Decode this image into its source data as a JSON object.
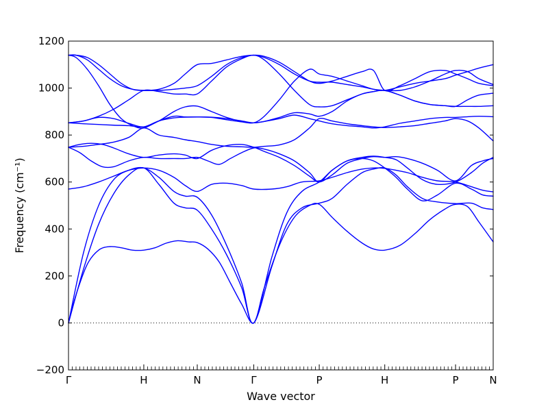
{
  "chart_data": {
    "type": "line",
    "xlabel": "Wave vector",
    "ylabel": "Frequency (cm⁻¹)",
    "ylim": [
      -200,
      1200
    ],
    "yticks": [
      -200,
      0,
      200,
      400,
      600,
      800,
      1000,
      1200
    ],
    "ytick_labels": [
      "−200",
      "0",
      "200",
      "400",
      "600",
      "800",
      "1000",
      "1200"
    ],
    "xlim": [
      0,
      5.64
    ],
    "xticks": [
      {
        "position": 0,
        "label": "Γ"
      },
      {
        "position": 1,
        "label": "H"
      },
      {
        "position": 1.71,
        "label": "N"
      },
      {
        "position": 2.46,
        "label": "Γ"
      },
      {
        "position": 3.33,
        "label": "P"
      },
      {
        "position": 4.2,
        "label": "H"
      },
      {
        "position": 5.14,
        "label": "P"
      },
      {
        "position": 5.64,
        "label": "N"
      }
    ],
    "zero_line": true,
    "series_color": "#0000ff",
    "series": [
      {
        "x": [
          0,
          0.1,
          0.25,
          0.4,
          0.55,
          0.7,
          0.85,
          1,
          1.15,
          1.3,
          1.45,
          1.6,
          1.71,
          1.85,
          2.0,
          2.15,
          2.3,
          2.46,
          2.6,
          2.8,
          3.0,
          3.2,
          3.33,
          3.5,
          3.7,
          3.9,
          4.05,
          4.2,
          4.4,
          4.6,
          4.8,
          5.0,
          5.14,
          5.3,
          5.45,
          5.64
        ],
        "y": [
          0,
          120,
          250,
          310,
          325,
          320,
          310,
          310,
          320,
          340,
          350,
          345,
          342,
          315,
          260,
          170,
          80,
          0,
          150,
          330,
          450,
          500,
          505,
          450,
          390,
          340,
          315,
          310,
          330,
          380,
          440,
          485,
          505,
          495,
          430,
          345
        ]
      },
      {
        "x": [
          0,
          0.2,
          0.4,
          0.6,
          0.8,
          1,
          1.2,
          1.4,
          1.55,
          1.71,
          1.9,
          2.1,
          2.3,
          2.46,
          2.7,
          2.9,
          3.1,
          3.33,
          3.5,
          3.7,
          3.9,
          4.05,
          4.2,
          4.35,
          4.5,
          4.7,
          4.9,
          5.14,
          5.35,
          5.5,
          5.64
        ],
        "y": [
          0,
          230,
          420,
          550,
          630,
          660,
          590,
          510,
          490,
          480,
          400,
          290,
          150,
          0,
          240,
          420,
          490,
          510,
          530,
          590,
          640,
          655,
          660,
          630,
          580,
          530,
          515,
          508,
          510,
          490,
          483
        ]
      },
      {
        "x": [
          0,
          0.2,
          0.4,
          0.6,
          0.8,
          1,
          1.2,
          1.4,
          1.55,
          1.71,
          1.9,
          2.1,
          2.3,
          2.46,
          2.7,
          2.9,
          3.1,
          3.33,
          3.5,
          3.7,
          3.9,
          4.05,
          4.2,
          4.35,
          4.5,
          4.7,
          4.9,
          5.14,
          5.35,
          5.5,
          5.64
        ],
        "y": [
          0,
          300,
          500,
          610,
          650,
          660,
          620,
          560,
          540,
          535,
          460,
          330,
          170,
          0,
          280,
          470,
          560,
          600,
          650,
          690,
          700,
          690,
          660,
          620,
          570,
          520,
          545,
          595,
          570,
          545,
          540
        ]
      },
      {
        "x": [
          0,
          0.2,
          0.4,
          0.6,
          0.8,
          1,
          1.2,
          1.4,
          1.55,
          1.71,
          1.9,
          2.1,
          2.3,
          2.46,
          2.7,
          2.9,
          3.1,
          3.33,
          3.5,
          3.7,
          3.9,
          4.05,
          4.2,
          4.35,
          4.5,
          4.7,
          4.9,
          5.14,
          5.35,
          5.5,
          5.64
        ],
        "y": [
          570,
          580,
          600,
          625,
          650,
          660,
          650,
          620,
          585,
          560,
          590,
          595,
          585,
          570,
          570,
          580,
          600,
          605,
          620,
          640,
          655,
          660,
          658,
          650,
          640,
          620,
          605,
          600,
          580,
          565,
          558
        ]
      },
      {
        "x": [
          0,
          0.15,
          0.3,
          0.45,
          0.6,
          0.8,
          1,
          1.2,
          1.4,
          1.55,
          1.71,
          1.85,
          2.0,
          2.15,
          2.3,
          2.46,
          2.6,
          2.8,
          3.0,
          3.2,
          3.33,
          3.5,
          3.7,
          3.9,
          4.05,
          4.2,
          4.35,
          4.5,
          4.7,
          4.9,
          5.14,
          5.35,
          5.5,
          5.64
        ],
        "y": [
          748,
          725,
          690,
          665,
          665,
          690,
          705,
          700,
          700,
          700,
          705,
          690,
          675,
          700,
          725,
          745,
          740,
          720,
          690,
          640,
          600,
          650,
          690,
          705,
          710,
          705,
          695,
          660,
          610,
          590,
          600,
          640,
          680,
          705
        ]
      },
      {
        "x": [
          0,
          0.15,
          0.3,
          0.45,
          0.6,
          0.8,
          1,
          1.2,
          1.4,
          1.55,
          1.71,
          1.9,
          2.1,
          2.3,
          2.46,
          2.6,
          2.8,
          3.0,
          3.2,
          3.33,
          3.5,
          3.7,
          3.9,
          4.05,
          4.2,
          4.35,
          4.5,
          4.7,
          4.9,
          5.14,
          5.35,
          5.5,
          5.64
        ],
        "y": [
          748,
          760,
          765,
          760,
          745,
          720,
          705,
          715,
          720,
          715,
          700,
          735,
          755,
          760,
          748,
          730,
          705,
          670,
          625,
          600,
          630,
          680,
          700,
          708,
          705,
          708,
          700,
          680,
          650,
          605,
          670,
          690,
          700
        ]
      },
      {
        "x": [
          0,
          0.2,
          0.4,
          0.6,
          0.8,
          1,
          1.2,
          1.4,
          1.55,
          1.71,
          1.9,
          2.1,
          2.3,
          2.46,
          2.6,
          2.8,
          3.0,
          3.2,
          3.33,
          3.5,
          3.7,
          3.9,
          4.05,
          4.2,
          4.4,
          4.6,
          4.8,
          5.0,
          5.14,
          5.3,
          5.45,
          5.64
        ],
        "y": [
          748,
          752,
          760,
          770,
          790,
          830,
          800,
          790,
          780,
          772,
          760,
          752,
          750,
          748,
          752,
          758,
          780,
          830,
          870,
          860,
          848,
          840,
          835,
          832,
          835,
          840,
          850,
          860,
          870,
          860,
          830,
          775
        ]
      },
      {
        "x": [
          0,
          0.2,
          0.4,
          0.6,
          0.8,
          1,
          1.2,
          1.4,
          1.55,
          1.71,
          1.9,
          2.1,
          2.3,
          2.46,
          2.6,
          2.8,
          3.0,
          3.2,
          3.33,
          3.5,
          3.7,
          3.9,
          4.05,
          4.2,
          4.4,
          4.6,
          4.8,
          5.0,
          5.14,
          5.3,
          5.45,
          5.64
        ],
        "y": [
          852,
          848,
          845,
          842,
          840,
          835,
          860,
          873,
          876,
          877,
          876,
          870,
          860,
          852,
          858,
          870,
          885,
          870,
          860,
          848,
          840,
          835,
          830,
          835,
          850,
          860,
          870,
          875,
          875,
          878,
          880,
          878
        ]
      },
      {
        "x": [
          0,
          0.2,
          0.4,
          0.6,
          0.8,
          1,
          1.2,
          1.4,
          1.55,
          1.71,
          1.9,
          2.1,
          2.3,
          2.46,
          2.6,
          2.8,
          3.0,
          3.2,
          3.33,
          3.5,
          3.7,
          3.9,
          4.05,
          4.2,
          4.4,
          4.6,
          4.8,
          5.0,
          5.14,
          5.3,
          5.45,
          5.64
        ],
        "y": [
          852,
          860,
          880,
          910,
          950,
          990,
          985,
          975,
          975,
          975,
          1030,
          1090,
          1125,
          1140,
          1120,
          1060,
          990,
          930,
          920,
          925,
          950,
          975,
          985,
          990,
          970,
          945,
          930,
          925,
          922,
          922,
          922,
          925
        ]
      },
      {
        "x": [
          0,
          0.2,
          0.4,
          0.6,
          0.8,
          1,
          1.2,
          1.4,
          1.55,
          1.71,
          1.9,
          2.1,
          2.3,
          2.46,
          2.6,
          2.8,
          3.0,
          3.2,
          3.33,
          3.5,
          3.7,
          3.9,
          4.05,
          4.2,
          4.4,
          4.6,
          4.8,
          5.0,
          5.14,
          5.3,
          5.45,
          5.64
        ],
        "y": [
          852,
          860,
          875,
          870,
          850,
          835,
          860,
          900,
          920,
          923,
          900,
          875,
          858,
          852,
          858,
          875,
          895,
          890,
          880,
          900,
          945,
          975,
          985,
          990,
          970,
          945,
          930,
          925,
          922,
          950,
          970,
          978
        ]
      },
      {
        "x": [
          0,
          0.1,
          0.25,
          0.4,
          0.55,
          0.7,
          0.85,
          1,
          1.2,
          1.4,
          1.55,
          1.71,
          1.9,
          2.1,
          2.3,
          2.46,
          2.6,
          2.8,
          3.0,
          3.2,
          3.33,
          3.5,
          3.7,
          3.9,
          4.05,
          4.2,
          4.4,
          4.6,
          4.8,
          5.0,
          5.14,
          5.3,
          5.45,
          5.64
        ],
        "y": [
          1140,
          1130,
          1080,
          1010,
          930,
          870,
          840,
          830,
          860,
          880,
          877,
          877,
          875,
          865,
          856,
          852,
          880,
          950,
          1030,
          1080,
          1060,
          1050,
          1030,
          1010,
          995,
          990,
          1005,
          1020,
          1030,
          1040,
          1055,
          1070,
          1085,
          1100
        ]
      },
      {
        "x": [
          0,
          0.1,
          0.25,
          0.4,
          0.55,
          0.7,
          0.85,
          1,
          1.2,
          1.4,
          1.55,
          1.71,
          1.9,
          2.1,
          2.3,
          2.46,
          2.6,
          2.8,
          3.0,
          3.2,
          3.33,
          3.5,
          3.7,
          3.9,
          4.05,
          4.2,
          4.4,
          4.6,
          4.8,
          5.0,
          5.14,
          5.3,
          5.45,
          5.64
        ],
        "y": [
          1140,
          1140,
          1120,
          1080,
          1040,
          1010,
          995,
          990,
          990,
          995,
          1000,
          1010,
          1050,
          1100,
          1130,
          1140,
          1135,
          1110,
          1070,
          1030,
          1020,
          1030,
          1050,
          1070,
          1075,
          990,
          1010,
          1040,
          1070,
          1075,
          1060,
          1040,
          1020,
          1010
        ]
      },
      {
        "x": [
          0,
          0.1,
          0.25,
          0.4,
          0.55,
          0.7,
          0.85,
          1,
          1.2,
          1.4,
          1.55,
          1.71,
          1.9,
          2.1,
          2.3,
          2.46,
          2.6,
          2.8,
          3.0,
          3.2,
          3.33,
          3.5,
          3.7,
          3.9,
          4.05,
          4.2,
          4.4,
          4.6,
          4.8,
          5.0,
          5.14,
          5.3,
          5.45,
          5.64
        ],
        "y": [
          1140,
          1140,
          1130,
          1100,
          1060,
          1020,
          995,
          990,
          995,
          1020,
          1060,
          1100,
          1105,
          1120,
          1135,
          1140,
          1130,
          1100,
          1060,
          1030,
          1025,
          1025,
          1015,
          1005,
          995,
          990,
          990,
          1005,
          1030,
          1060,
          1075,
          1070,
          1040,
          1015
        ]
      }
    ]
  }
}
